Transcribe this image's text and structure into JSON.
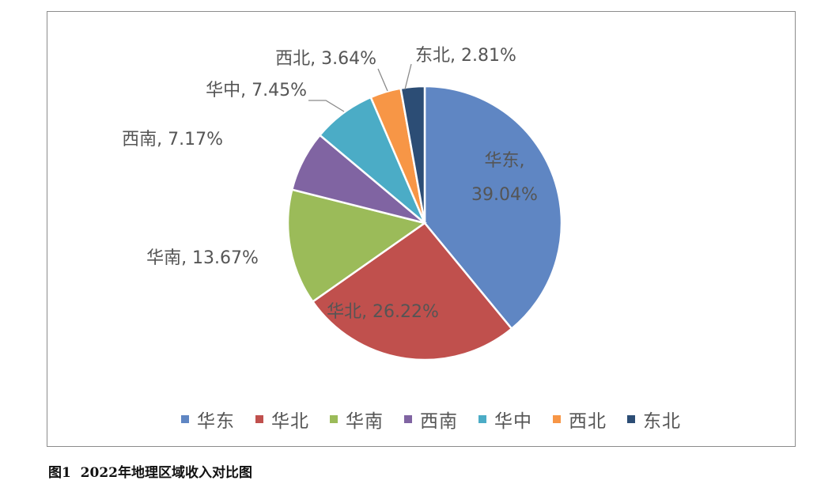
{
  "caption": "图1  2022年地理区域收入对比图",
  "chart_data": {
    "type": "pie",
    "title": "",
    "slices": [
      {
        "name": "华东",
        "value": 39.04,
        "label": "华东,",
        "label2": "39.04%",
        "color": "#5f86c3"
      },
      {
        "name": "华北",
        "value": 26.22,
        "label": "华北, 26.22%",
        "color": "#c0504d"
      },
      {
        "name": "华南",
        "value": 13.67,
        "label": "华南, 13.67%",
        "color": "#9bbb59"
      },
      {
        "name": "西南",
        "value": 7.17,
        "label": "西南, 7.17%",
        "color": "#8064a2"
      },
      {
        "name": "华中",
        "value": 7.45,
        "label": "华中, 7.45%",
        "color": "#4bacc6"
      },
      {
        "name": "西北",
        "value": 3.64,
        "label": "西北, 3.64%",
        "color": "#f79646"
      },
      {
        "name": "东北",
        "value": 2.81,
        "label": "东北, 2.81%",
        "color": "#2c4d75"
      }
    ],
    "legend": {
      "position": "bottom",
      "items": [
        "华东",
        "华北",
        "华南",
        "西南",
        "华中",
        "西北",
        "东北"
      ]
    }
  }
}
